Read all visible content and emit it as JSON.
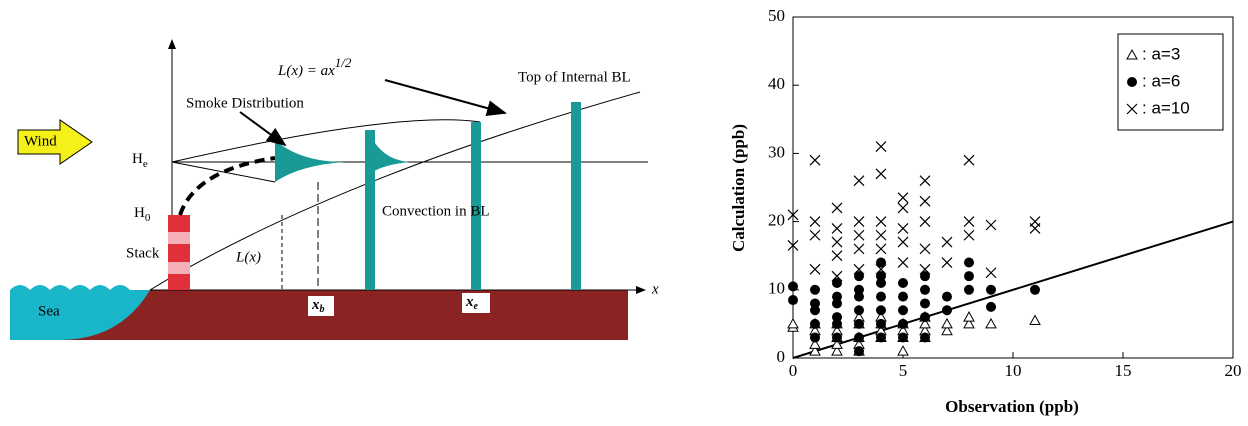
{
  "diagram": {
    "wind": "Wind",
    "he": {
      "main": "H",
      "sub": "e"
    },
    "h0": {
      "main": "H",
      "sub": "0"
    },
    "stack": "Stack",
    "sea": "Sea",
    "formula": {
      "main": "L(x) = ax",
      "sup": "1/2"
    },
    "top_label": "Top of Internal BL",
    "smoke": "Smoke Distribution",
    "convection": "Convection in BL",
    "lx": "L(x)",
    "xb": {
      "main": "x",
      "sub": "b"
    },
    "xe": {
      "main": "x",
      "sub": "e"
    },
    "x_axis": "x"
  },
  "chart_data": {
    "type": "scatter",
    "x_label": "Observation (ppb)",
    "y_label": "Calculation (ppb)",
    "xlim": [
      0,
      20
    ],
    "ylim": [
      0,
      50
    ],
    "xticks": [
      0,
      5,
      10,
      15,
      20
    ],
    "yticks": [
      0,
      10,
      20,
      30,
      40,
      50
    ],
    "legend": "upper right",
    "reference_line": {
      "x": [
        0,
        20
      ],
      "values": [
        0,
        20
      ]
    },
    "series": [
      {
        "name": ": a=3",
        "marker": "triangle",
        "color": "#000",
        "x": [
          0,
          0,
          1,
          1,
          1,
          1,
          2,
          2,
          2,
          2,
          2,
          3,
          3,
          3,
          3,
          3,
          4,
          4,
          4,
          4,
          5,
          5,
          5,
          5,
          6,
          6,
          6,
          6,
          7,
          7,
          8,
          8,
          9,
          11
        ],
        "values": [
          4.5,
          5,
          1,
          2,
          4,
          5,
          1,
          2,
          3,
          4,
          5,
          1,
          2,
          3,
          5,
          6,
          3,
          4,
          5,
          6,
          1,
          3,
          4,
          5,
          3,
          4,
          5,
          6,
          4,
          5,
          5,
          6,
          5,
          5.5
        ]
      },
      {
        "name": ": a=6",
        "marker": "circle",
        "color": "#000",
        "x": [
          0,
          0,
          1,
          1,
          1,
          1,
          1,
          2,
          2,
          2,
          2,
          2,
          2,
          3,
          3,
          3,
          3,
          3,
          3,
          3,
          4,
          4,
          4,
          4,
          4,
          4,
          4,
          5,
          5,
          5,
          5,
          5,
          6,
          6,
          6,
          6,
          6,
          7,
          7,
          8,
          8,
          8,
          9,
          9,
          11
        ],
        "values": [
          8.5,
          10.5,
          3,
          5,
          7,
          8,
          10,
          3,
          5,
          6,
          8,
          9,
          11,
          1,
          3,
          5,
          7,
          9,
          10,
          12,
          3,
          5,
          7,
          9,
          11,
          12,
          14,
          3,
          5,
          7,
          9,
          11,
          3,
          6,
          8,
          10,
          12,
          7,
          9,
          10,
          12,
          14,
          7.5,
          10,
          10
        ]
      },
      {
        "name": ": a=10",
        "marker": "cross",
        "color": "#000",
        "x": [
          0,
          0,
          1,
          1,
          1,
          1,
          2,
          2,
          2,
          2,
          2,
          3,
          3,
          3,
          3,
          3,
          4,
          4,
          4,
          4,
          4,
          4,
          5,
          5,
          5,
          5,
          5,
          6,
          6,
          6,
          6,
          6,
          7,
          7,
          8,
          8,
          8,
          9,
          9,
          11,
          11
        ],
        "values": [
          16.5,
          21,
          13,
          18,
          20,
          29,
          12,
          15,
          17,
          19,
          22,
          13,
          16,
          18,
          20,
          26,
          13,
          16,
          18,
          20,
          27,
          31,
          14,
          17,
          19,
          22,
          23.5,
          13,
          16,
          20,
          23,
          26,
          14,
          17,
          18,
          20,
          29,
          12.5,
          19.5,
          19,
          20
        ]
      }
    ]
  }
}
